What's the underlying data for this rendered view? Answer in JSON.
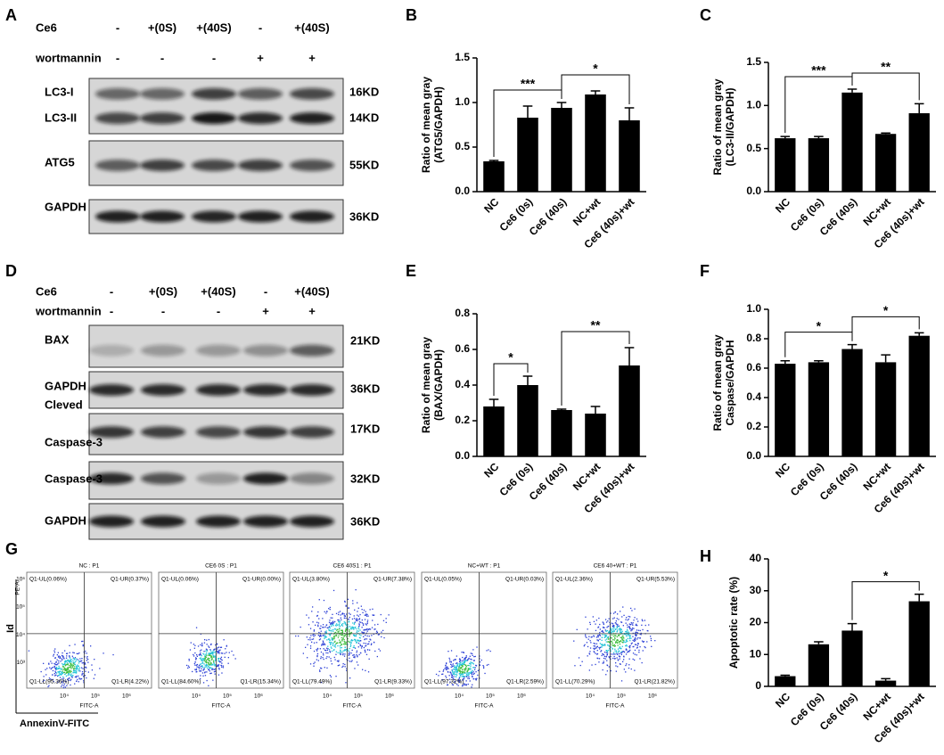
{
  "blots": [
    {
      "panel": "A",
      "conditions": [
        {
          "name": "Ce6",
          "values": [
            "-",
            "+(0S)",
            "+(40S)",
            "-",
            "+(40S)"
          ]
        },
        {
          "name": "wortmannin",
          "values": [
            "-",
            "-",
            "-",
            "+",
            "+"
          ]
        }
      ],
      "rows": [
        {
          "labels": [
            "LC3-I",
            "LC3-II"
          ],
          "sizes": [
            "16KD",
            "14KD"
          ]
        },
        {
          "labels": [
            "ATG5"
          ],
          "sizes": [
            "55KD"
          ]
        },
        {
          "labels": [
            "GAPDH"
          ],
          "sizes": [
            "36KD"
          ]
        }
      ]
    },
    {
      "panel": "D",
      "conditions": [
        {
          "name": "Ce6",
          "values": [
            "-",
            "+(0S)",
            "+(40S)",
            "-",
            "+(40S)"
          ]
        },
        {
          "name": "wortmannin",
          "values": [
            "-",
            "-",
            "-",
            "+",
            "+"
          ]
        }
      ],
      "rows": [
        {
          "labels": [
            "BAX"
          ],
          "sizes": [
            "21KD"
          ]
        },
        {
          "labels": [
            "GAPDH"
          ],
          "sizes": [
            "36KD"
          ]
        },
        {
          "labels": [
            "Cleved",
            "Caspase-3"
          ],
          "sizes": [
            "17KD"
          ]
        },
        {
          "labels": [
            "Caspase-3"
          ],
          "sizes": [
            "32KD"
          ]
        },
        {
          "labels": [
            "GAPDH"
          ],
          "sizes": [
            "36KD"
          ]
        }
      ]
    }
  ],
  "flow": {
    "panel": "G",
    "x_label": "AnnexinV-FITC",
    "y_label": "Id",
    "x_axis": "FITC-A",
    "y_axis": "PE-A",
    "xticks": [
      "10⁴",
      "10⁵",
      "10⁶"
    ],
    "yticks": [
      "10³",
      "10⁴",
      "10⁵",
      "10⁶"
    ],
    "plots": [
      {
        "title": "NC : P1",
        "UL": "Q1-UL(0.06%)",
        "UR": "Q1-UR(0.37%)",
        "LL": "Q1-LL(95.36%)",
        "LR": "Q1-LR(4.22%)"
      },
      {
        "title": "CE6 0S : P1",
        "UL": "Q1-UL(0.06%)",
        "UR": "Q1-UR(0.00%)",
        "LL": "Q1-LL(84.60%)",
        "LR": "Q1-LR(15.34%)"
      },
      {
        "title": "CE6 40S1 : P1",
        "UL": "Q1-UL(3.80%)",
        "UR": "Q1-UR(7.38%)",
        "LL": "Q1-LL(79.49%)",
        "LR": "Q1-LR(9.33%)"
      },
      {
        "title": "NC+WT : P1",
        "UL": "Q1-UL(0.05%)",
        "UR": "Q1-UR(0.03%)",
        "LL": "Q1-LL(97.32%)",
        "LR": "Q1-LR(2.59%)"
      },
      {
        "title": "CE6 40+WT : P1",
        "UL": "Q1-UL(2.36%)",
        "UR": "Q1-UR(5.53%)",
        "LL": "Q1-LL(70.29%)",
        "LR": "Q1-LR(21.82%)"
      }
    ]
  },
  "chart_data": [
    {
      "type": "bar",
      "panel": "B",
      "ylabel": [
        "Ratio of mean gray",
        "(ATG5/GAPDH)"
      ],
      "categories": [
        "NC",
        "Ce6 (0s)",
        "Ce6 (40s)",
        "NC+wt",
        "Ce6 (40s)+wt"
      ],
      "values": [
        0.34,
        0.83,
        0.94,
        1.09,
        0.8
      ],
      "errors": [
        0.01,
        0.13,
        0.06,
        0.04,
        0.14
      ],
      "color": "#000000",
      "ylim": [
        0,
        1.5
      ],
      "yticks": [
        {
          "value": 0,
          "label": "0.0"
        },
        0.5,
        {
          "value": 1,
          "label": "1.0"
        },
        1.5
      ],
      "significance": [
        {
          "from": 0,
          "to": 2,
          "label": "***"
        },
        {
          "from": 2,
          "to": 4,
          "label": "*"
        }
      ]
    },
    {
      "type": "bar",
      "panel": "C",
      "ylabel": [
        "Ratio of mean gray",
        "(LC3-II/GAPDH)"
      ],
      "categories": [
        "NC",
        "Ce6 (0s)",
        "Ce6 (40s)",
        "NC+wt",
        "Ce6 (40s)+wt"
      ],
      "values": [
        0.62,
        0.62,
        1.15,
        0.67,
        0.91
      ],
      "errors": [
        0.02,
        0.02,
        0.04,
        0.01,
        0.11
      ],
      "color": "#000000",
      "ylim": [
        0,
        1.5
      ],
      "yticks": [
        {
          "value": 0,
          "label": "0.0"
        },
        0.5,
        {
          "value": 1,
          "label": "1.0"
        },
        1.5
      ],
      "significance": [
        {
          "from": 0,
          "to": 2,
          "label": "***"
        },
        {
          "from": 2,
          "to": 4,
          "label": "**"
        }
      ]
    },
    {
      "type": "bar",
      "panel": "E",
      "ylabel": [
        "Ratio of mean gray",
        "(BAX/GAPDH)"
      ],
      "categories": [
        "NC",
        "Ce6 (0s)",
        "Ce6 (40s)",
        "NC+wt",
        "Ce6 (40s)+wt"
      ],
      "values": [
        0.28,
        0.4,
        0.26,
        0.24,
        0.51
      ],
      "errors": [
        0.04,
        0.05,
        0.005,
        0.04,
        0.1
      ],
      "color": "#000000",
      "ylim": [
        0,
        0.8
      ],
      "yticks": [
        {
          "value": 0,
          "label": "0.0"
        },
        0.2,
        0.4,
        0.6,
        0.8
      ],
      "significance": [
        {
          "from": 0,
          "to": 1,
          "label": "*"
        },
        {
          "from": 2,
          "to": 4,
          "label": "**"
        }
      ]
    },
    {
      "type": "bar",
      "panel": "F",
      "ylabel": [
        "Ratio of mean gray",
        "Caspase/GAPDH"
      ],
      "categories": [
        "NC",
        "Ce6 (0s)",
        "Ce6 (40s)",
        "NC+wt",
        "Ce6 (40s)+wt"
      ],
      "values": [
        0.63,
        0.64,
        0.73,
        0.64,
        0.82
      ],
      "errors": [
        0.02,
        0.01,
        0.03,
        0.05,
        0.02
      ],
      "color": "#000000",
      "ylim": [
        0,
        1
      ],
      "yticks": [
        {
          "value": 0,
          "label": "0.0"
        },
        0.2,
        0.4,
        0.6,
        0.8,
        {
          "value": 1,
          "label": "1.0"
        }
      ],
      "significance": [
        {
          "from": 0,
          "to": 2,
          "label": "*"
        },
        {
          "from": 2,
          "to": 4,
          "label": "*"
        }
      ]
    },
    {
      "type": "bar",
      "panel": "H",
      "ylabel": [
        "Apoptotic rate (%)"
      ],
      "categories": [
        "NC",
        "Ce6 (0s)",
        "Ce6 (40s)",
        "NC+wt",
        "Ce6 (40s)+wt"
      ],
      "values": [
        3.2,
        13.2,
        17.5,
        1.8,
        26.7
      ],
      "errors": [
        0.3,
        0.8,
        2.2,
        0.6,
        2.2
      ],
      "color": "#000000",
      "ylim": [
        0,
        40
      ],
      "yticks": [
        0,
        10,
        20,
        30,
        40
      ],
      "significance": [
        {
          "from": 2,
          "to": 4,
          "label": "*"
        }
      ]
    }
  ]
}
